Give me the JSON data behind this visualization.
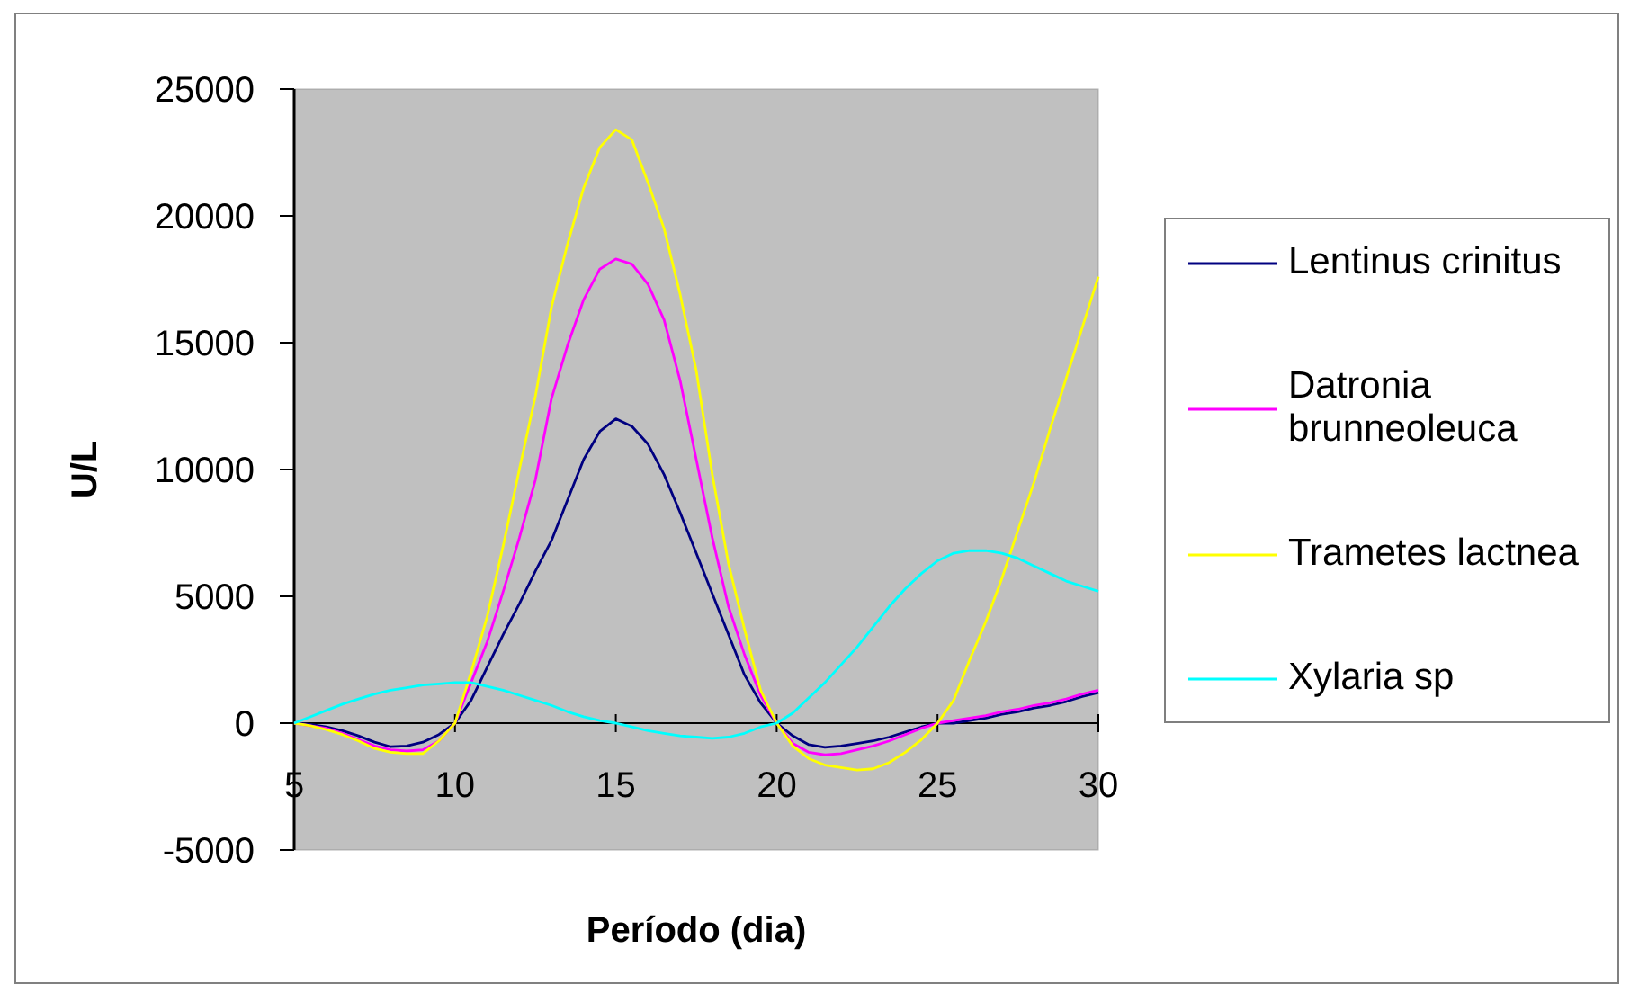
{
  "chart_data": {
    "type": "line",
    "xlabel": "Período (dia)",
    "ylabel": "U/L",
    "xlim": [
      5,
      30
    ],
    "xticks": [
      5,
      10,
      15,
      20,
      25,
      30
    ],
    "ylim": [
      -5000,
      25000
    ],
    "yticks": [
      -5000,
      0,
      5000,
      10000,
      15000,
      20000,
      25000
    ],
    "grid": false,
    "legend": "right",
    "x": [
      5,
      5.5,
      6,
      6.5,
      7,
      7.5,
      8,
      8.5,
      9,
      9.5,
      10,
      10.5,
      11,
      11.5,
      12,
      12.5,
      13,
      13.5,
      14,
      14.5,
      15,
      15.5,
      16,
      16.5,
      17,
      17.5,
      18,
      18.5,
      19,
      19.5,
      20,
      20.5,
      21,
      21.5,
      22,
      22.5,
      23,
      23.5,
      24,
      24.5,
      25,
      25.5,
      26,
      26.5,
      27,
      27.5,
      28,
      28.5,
      29,
      29.5,
      30
    ],
    "series": [
      {
        "name": "Lentinus crinitus",
        "color": "#000080",
        "values": [
          0,
          -50,
          -150,
          -300,
          -500,
          -750,
          -930,
          -900,
          -750,
          -450,
          0,
          900,
          2200,
          3500,
          4700,
          6000,
          7200,
          8800,
          10400,
          11500,
          12000,
          11700,
          11000,
          9800,
          8300,
          6700,
          5100,
          3500,
          1900,
          800,
          0,
          -500,
          -850,
          -950,
          -900,
          -800,
          -700,
          -550,
          -350,
          -150,
          0,
          0,
          100,
          200,
          350,
          450,
          600,
          700,
          850,
          1050,
          1200
        ]
      },
      {
        "name": "Datronia brunneoleuca",
        "color": "#ff00ff",
        "values": [
          0,
          -100,
          -200,
          -400,
          -650,
          -900,
          -1050,
          -1100,
          -1050,
          -700,
          0,
          1600,
          3200,
          5200,
          7300,
          9600,
          12800,
          14900,
          16700,
          17900,
          18300,
          18100,
          17300,
          15900,
          13500,
          10400,
          7300,
          4600,
          2700,
          1100,
          0,
          -800,
          -1150,
          -1250,
          -1200,
          -1050,
          -900,
          -700,
          -450,
          -200,
          0,
          100,
          200,
          300,
          450,
          550,
          700,
          800,
          950,
          1150,
          1300
        ]
      },
      {
        "name": "Trametes lactnea",
        "color": "#ffff00",
        "values": [
          0,
          -100,
          -250,
          -450,
          -700,
          -1000,
          -1150,
          -1200,
          -1200,
          -700,
          0,
          2000,
          4200,
          7000,
          10000,
          12900,
          16400,
          18900,
          21100,
          22700,
          23400,
          23000,
          21300,
          19500,
          16900,
          13900,
          9800,
          6300,
          3700,
          1300,
          0,
          -900,
          -1400,
          -1650,
          -1750,
          -1850,
          -1800,
          -1550,
          -1150,
          -650,
          0,
          900,
          2500,
          4000,
          5700,
          7600,
          9500,
          11600,
          13600,
          15600,
          17600
        ]
      },
      {
        "name": "Xylaria sp",
        "color": "#00ffff",
        "values": [
          0,
          250,
          500,
          750,
          950,
          1150,
          1300,
          1400,
          1500,
          1550,
          1600,
          1600,
          1450,
          1300,
          1100,
          900,
          700,
          450,
          250,
          100,
          0,
          -150,
          -300,
          -400,
          -500,
          -550,
          -600,
          -550,
          -400,
          -150,
          0,
          400,
          1000,
          1600,
          2300,
          3000,
          3800,
          4600,
          5300,
          5900,
          6400,
          6700,
          6800,
          6800,
          6700,
          6500,
          6200,
          5900,
          5600,
          5400,
          5200
        ]
      }
    ]
  }
}
